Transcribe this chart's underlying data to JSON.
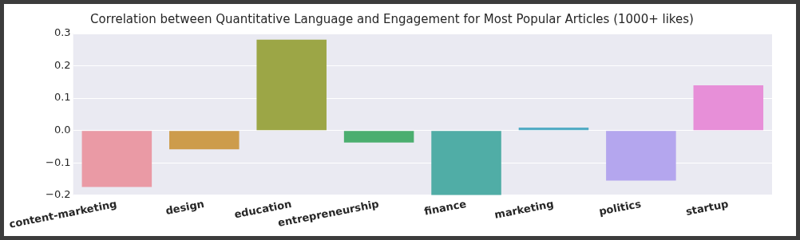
{
  "chart_data": {
    "type": "bar",
    "title": "Correlation between Quantitative Language and Engagement for Most Popular Articles (1000+ likes)",
    "categories": [
      "content-marketing",
      "design",
      "education",
      "entrepreneurship",
      "finance",
      "marketing",
      "politics",
      "startup"
    ],
    "values": [
      -0.175,
      -0.058,
      0.281,
      -0.037,
      -0.2,
      0.009,
      -0.155,
      0.14
    ],
    "colors": [
      "#ea9aa5",
      "#cd9c4b",
      "#9ca646",
      "#4bae6f",
      "#50ada6",
      "#54acc5",
      "#b4a6ee",
      "#e78fd8"
    ],
    "ylim": [
      -0.2,
      0.3
    ],
    "yticks": [
      {
        "value": -0.2,
        "label": "−0.2"
      },
      {
        "value": -0.1,
        "label": "−0.1"
      },
      {
        "value": 0,
        "label": "0.0"
      },
      0.1,
      0.2,
      0.3
    ],
    "grid": "y"
  }
}
